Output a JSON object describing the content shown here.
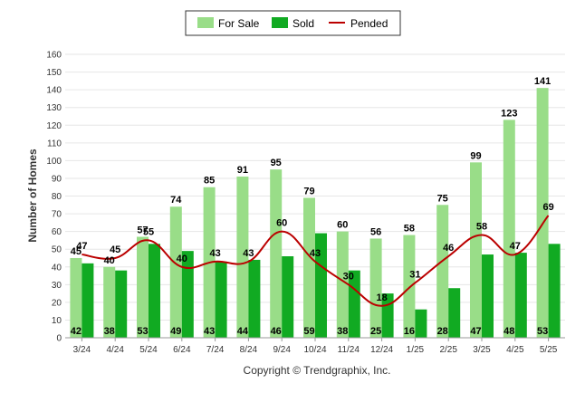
{
  "chart_data": {
    "type": "bar",
    "categories": [
      "3/24",
      "4/24",
      "5/24",
      "6/24",
      "7/24",
      "8/24",
      "9/24",
      "10/24",
      "11/24",
      "12/24",
      "1/25",
      "2/25",
      "3/25",
      "4/25",
      "5/25"
    ],
    "series": [
      {
        "name": "For Sale",
        "type": "bar",
        "color": "#99dd88",
        "values": [
          45,
          40,
          57,
          74,
          85,
          91,
          95,
          79,
          60,
          56,
          58,
          75,
          99,
          123,
          141
        ]
      },
      {
        "name": "Sold",
        "type": "bar",
        "color": "#11aa22",
        "values": [
          42,
          38,
          53,
          49,
          43,
          44,
          46,
          59,
          38,
          25,
          16,
          28,
          47,
          48,
          53
        ]
      },
      {
        "name": "Pended",
        "type": "line",
        "color": "#bb0000",
        "values": [
          47,
          45,
          55,
          40,
          43,
          43,
          60,
          43,
          30,
          18,
          31,
          46,
          58,
          47,
          69
        ]
      }
    ],
    "title": "",
    "xlabel": "",
    "ylabel": "Number of Homes",
    "ylim": [
      0,
      160
    ],
    "yticks": [
      0,
      10,
      20,
      30,
      40,
      50,
      60,
      70,
      80,
      90,
      100,
      110,
      120,
      130,
      140,
      150,
      160
    ],
    "grid": true,
    "legend_position": "top-center"
  },
  "footer": {
    "copyright": "Copyright © Trendgraphix, Inc."
  }
}
